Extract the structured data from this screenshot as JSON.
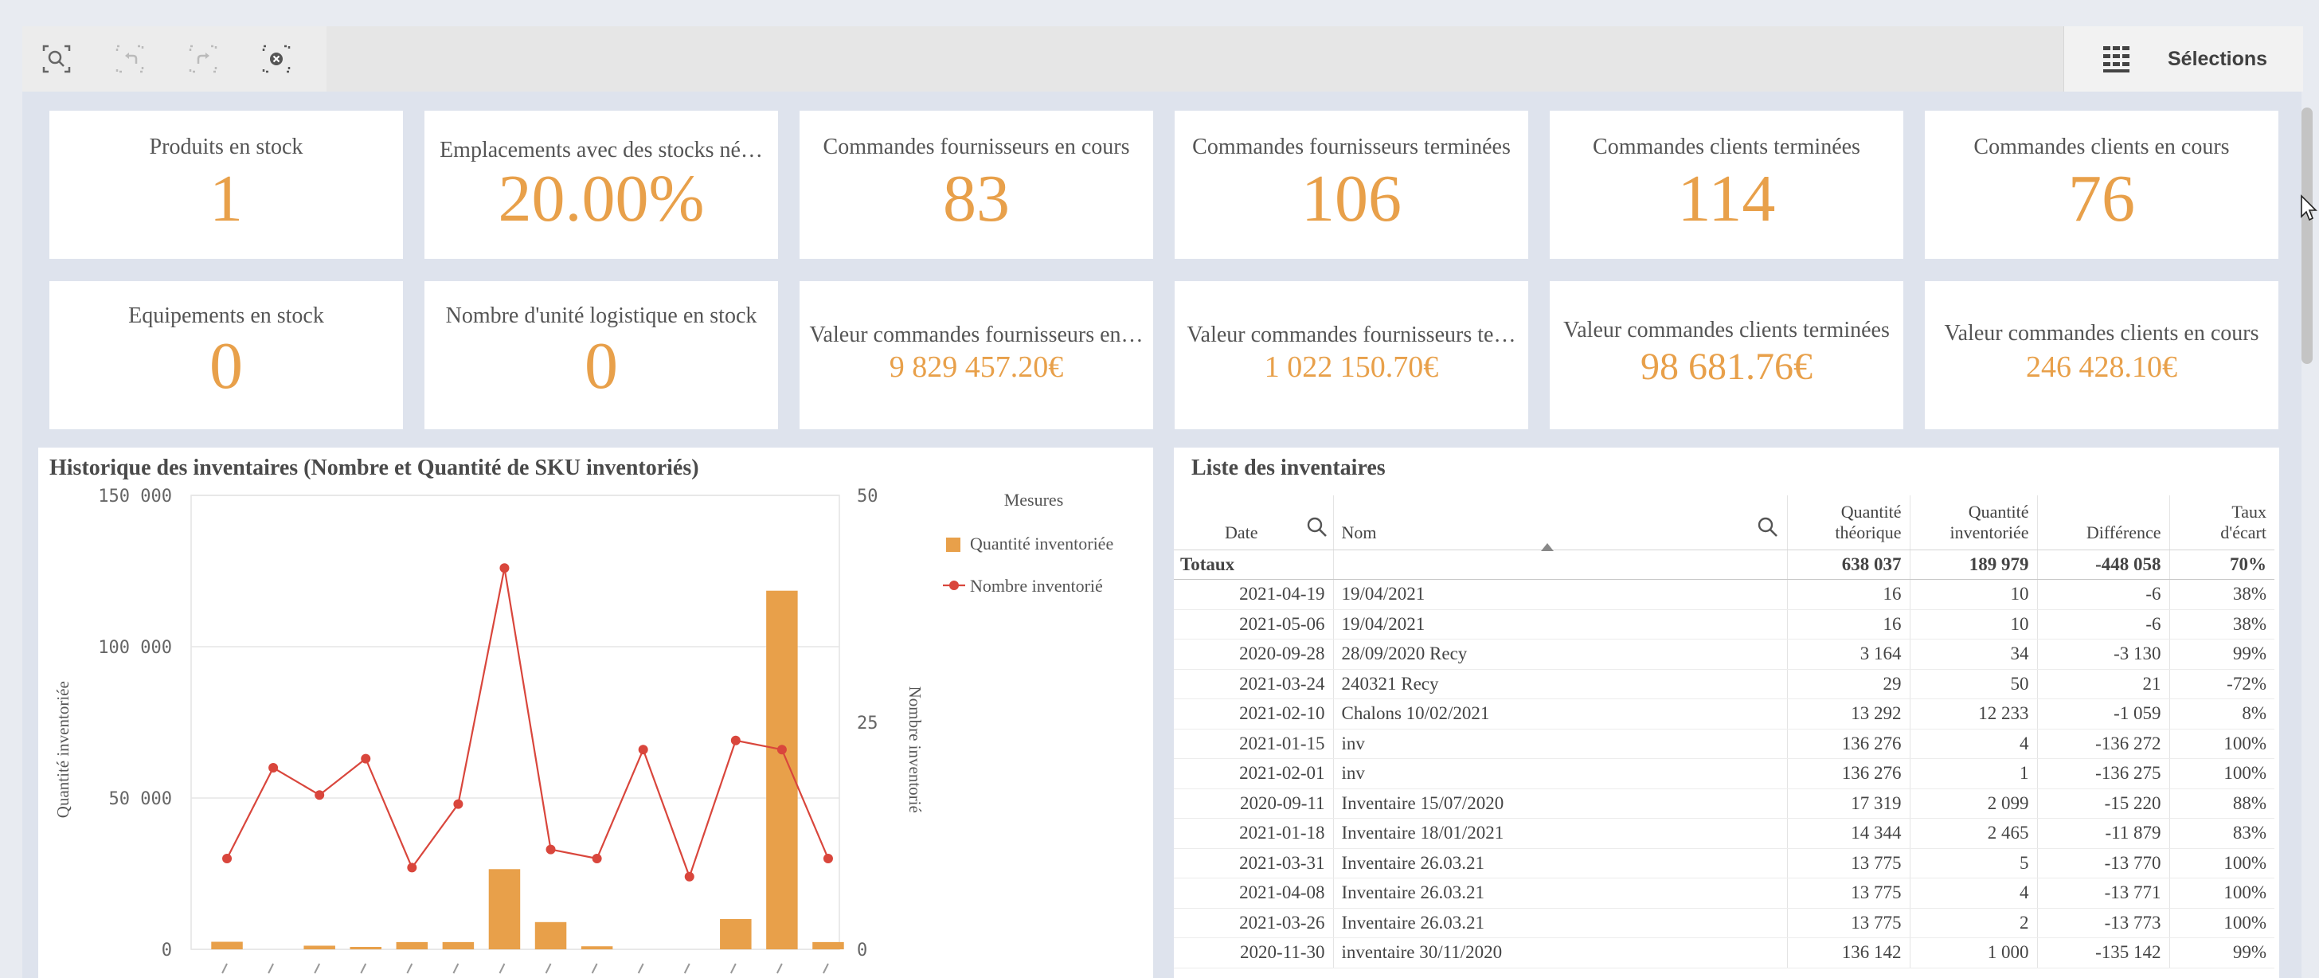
{
  "toolbar": {
    "tools": [
      "smart-search-icon",
      "step-back-icon",
      "step-forward-icon",
      "clear-selections-icon"
    ],
    "selections_label": "Sélections"
  },
  "kpis": [
    {
      "label": "Produits en stock",
      "value": "1"
    },
    {
      "label": "Emplacements avec des stocks né…",
      "value": "20.00%"
    },
    {
      "label": "Commandes fournisseurs en cours",
      "value": "83"
    },
    {
      "label": "Commandes fournisseurs terminées",
      "value": "106"
    },
    {
      "label": "Commandes clients terminées",
      "value": "114"
    },
    {
      "label": "Commandes clients en cours",
      "value": "76"
    },
    {
      "label": "Equipements en stock",
      "value": "0"
    },
    {
      "label": "Nombre d'unité logistique en stock",
      "value": "0"
    },
    {
      "label": "Valeur commandes fournisseurs en…",
      "value": "9 829 457.20€"
    },
    {
      "label": "Valeur commandes fournisseurs te…",
      "value": "1 022 150.70€"
    },
    {
      "label": "Valeur commandes clients terminées",
      "value": "98 681.76€"
    },
    {
      "label": "Valeur commandes clients en cours",
      "value": "246 428.10€"
    }
  ],
  "chart_panel": {
    "title": "Historique des inventaires (Nombre et Quantité de SKU inventoriés)"
  },
  "chart_data": {
    "type": "bar",
    "legend_title": "Mesures",
    "legend_position": "right",
    "ylabel": "Quantité inventoriée",
    "y2label": "Nombre inventorié",
    "ylim": [
      0,
      150000
    ],
    "y2lim": [
      0,
      50
    ],
    "yticks": [
      "150 000",
      "100 000",
      "50 000",
      "0"
    ],
    "y2ticks": [
      "50",
      "25",
      "0"
    ],
    "series": [
      {
        "name": "Quantité inventoriée",
        "kind": "bar",
        "color": "#e8a04a",
        "values": [
          2500,
          0,
          1200,
          800,
          2400,
          2400,
          26500,
          9000,
          1000,
          0,
          0,
          10000,
          118500,
          2400
        ]
      },
      {
        "name": "Nombre inventorié",
        "kind": "line",
        "color": "#d9463c",
        "values": [
          10,
          20,
          17,
          21,
          9,
          16,
          42,
          11,
          10,
          22,
          8,
          23,
          22,
          10
        ]
      }
    ]
  },
  "table_panel": {
    "title": "Liste des inventaires",
    "headers": {
      "date": "Date",
      "nom": "Nom",
      "qte_theo": [
        "Quantité",
        "théorique"
      ],
      "qte_inv": [
        "Quantité",
        "inventoriée"
      ],
      "diff": "Différence",
      "taux": [
        "Taux",
        "d'écart"
      ]
    },
    "totals": {
      "label": "Totaux",
      "qte_theo": "638 037",
      "qte_inv": "189 979",
      "diff": "-448 058",
      "taux": "70%"
    },
    "rows": [
      {
        "date": "2021-04-19",
        "nom": "19/04/2021",
        "qte_theo": "16",
        "qte_inv": "10",
        "diff": "-6",
        "taux": "38%"
      },
      {
        "date": "2021-05-06",
        "nom": "19/04/2021",
        "qte_theo": "16",
        "qte_inv": "10",
        "diff": "-6",
        "taux": "38%"
      },
      {
        "date": "2020-09-28",
        "nom": "28/09/2020 Recy",
        "qte_theo": "3 164",
        "qte_inv": "34",
        "diff": "-3 130",
        "taux": "99%"
      },
      {
        "date": "2021-03-24",
        "nom": "240321 Recy",
        "qte_theo": "29",
        "qte_inv": "50",
        "diff": "21",
        "taux": "-72%"
      },
      {
        "date": "2021-02-10",
        "nom": "Chalons 10/02/2021",
        "qte_theo": "13 292",
        "qte_inv": "12 233",
        "diff": "-1 059",
        "taux": "8%"
      },
      {
        "date": "2021-01-15",
        "nom": "inv",
        "qte_theo": "136 276",
        "qte_inv": "4",
        "diff": "-136 272",
        "taux": "100%"
      },
      {
        "date": "2021-02-01",
        "nom": "inv",
        "qte_theo": "136 276",
        "qte_inv": "1",
        "diff": "-136 275",
        "taux": "100%"
      },
      {
        "date": "2020-09-11",
        "nom": "Inventaire 15/07/2020",
        "qte_theo": "17 319",
        "qte_inv": "2 099",
        "diff": "-15 220",
        "taux": "88%"
      },
      {
        "date": "2021-01-18",
        "nom": "Inventaire 18/01/2021",
        "qte_theo": "14 344",
        "qte_inv": "2 465",
        "diff": "-11 879",
        "taux": "83%"
      },
      {
        "date": "2021-03-31",
        "nom": "Inventaire 26.03.21",
        "qte_theo": "13 775",
        "qte_inv": "5",
        "diff": "-13 770",
        "taux": "100%"
      },
      {
        "date": "2021-04-08",
        "nom": "Inventaire 26.03.21",
        "qte_theo": "13 775",
        "qte_inv": "4",
        "diff": "-13 771",
        "taux": "100%"
      },
      {
        "date": "2021-03-26",
        "nom": "Inventaire 26.03.21",
        "qte_theo": "13 775",
        "qte_inv": "2",
        "diff": "-13 773",
        "taux": "100%"
      },
      {
        "date": "2020-11-30",
        "nom": "inventaire 30/11/2020",
        "qte_theo": "136 142",
        "qte_inv": "1 000",
        "diff": "-135 142",
        "taux": "99%"
      }
    ]
  }
}
